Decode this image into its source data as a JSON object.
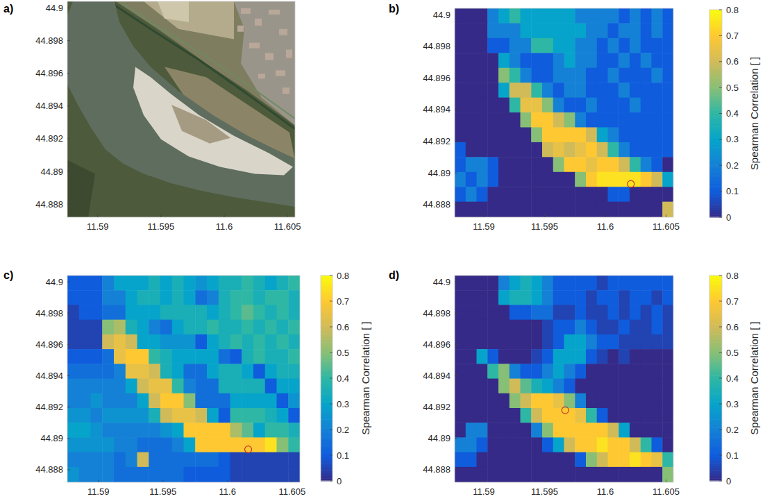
{
  "chart_data": [
    {
      "type": "image",
      "title": "a)",
      "xlim": [
        11.5876,
        11.6056
      ],
      "ylim": [
        44.8872,
        44.9004
      ],
      "xticks": [
        11.59,
        11.595,
        11.6,
        11.605
      ],
      "yticks": [
        44.888,
        44.89,
        44.892,
        44.894,
        44.896,
        44.898,
        44.9
      ]
    },
    {
      "type": "heatmap",
      "title": "b)",
      "xlim": [
        11.5876,
        11.6056
      ],
      "ylim": [
        44.8872,
        44.9004
      ],
      "xticks": [
        11.59,
        11.595,
        11.6,
        11.605
      ],
      "yticks": [
        44.888,
        44.89,
        44.892,
        44.894,
        44.896,
        44.898,
        44.9
      ],
      "x_edges": [
        11.5876,
        11.5885,
        11.5894,
        11.5903,
        11.5912,
        11.5921,
        11.593,
        11.5939,
        11.5948,
        11.5957,
        11.5966,
        11.5975,
        11.5984,
        11.5993,
        11.6002,
        11.6011,
        11.602,
        11.6029,
        11.6038,
        11.6047,
        11.6056
      ],
      "y_edges": [
        44.9004,
        44.89946,
        44.89852,
        44.89758,
        44.89664,
        44.8957,
        44.89476,
        44.89382,
        44.89288,
        44.89194,
        44.891,
        44.89006,
        44.88912,
        44.88818,
        44.8872
      ],
      "cells": [
        [
          0,
          0,
          0,
          0.2,
          0.3,
          0.4,
          0.3,
          0.3,
          0.3,
          0.3,
          0.3,
          0.2,
          0.2,
          0.2,
          0.2,
          0.1,
          0.2,
          0.1,
          0.2,
          0.1
        ],
        [
          0,
          0,
          0,
          0.2,
          0.2,
          0.2,
          0.3,
          0.3,
          0.3,
          0.3,
          0.3,
          0.3,
          0.2,
          0.2,
          0.1,
          0.2,
          0.2,
          0.1,
          0.2,
          0.1
        ],
        [
          0,
          0,
          0,
          0.1,
          0.1,
          0.2,
          0.2,
          0.4,
          0.4,
          0.3,
          0.3,
          0.2,
          0.2,
          0.1,
          0.2,
          0.1,
          0.2,
          0.1,
          0.1,
          0.1
        ],
        [
          0,
          0,
          0,
          0,
          0.3,
          0.2,
          0.1,
          0.1,
          0.1,
          0.2,
          0.3,
          0.2,
          0.2,
          0.1,
          0.1,
          0.2,
          0.1,
          0.2,
          0.1,
          0.1
        ],
        [
          0,
          0,
          0,
          0,
          0.5,
          0.4,
          0.2,
          0.1,
          0.1,
          0.2,
          0.2,
          0.2,
          0.1,
          0.1,
          0.2,
          0.1,
          0.1,
          0.1,
          0.2,
          0.1
        ],
        [
          0,
          0,
          0,
          0,
          0.3,
          0.6,
          0.6,
          0.4,
          0.2,
          0.1,
          0.2,
          0.2,
          0.1,
          0.1,
          0.1,
          0.2,
          0.1,
          0.1,
          0.1,
          0.1
        ],
        [
          0,
          0,
          0,
          0,
          0,
          0.4,
          0.65,
          0.65,
          0.5,
          0.2,
          0.1,
          0.1,
          0.2,
          0.1,
          0.1,
          0.1,
          0.2,
          0.1,
          0.1,
          0.1
        ],
        [
          0,
          0,
          0,
          0,
          0,
          0,
          0.5,
          0.7,
          0.7,
          0.6,
          0.5,
          0.2,
          0.1,
          0.1,
          0.1,
          0.1,
          0.1,
          0.1,
          0.1,
          0.1
        ],
        [
          0,
          0,
          0,
          0,
          0,
          0,
          0,
          0.5,
          0.7,
          0.7,
          0.7,
          0.7,
          0.6,
          0.3,
          0.2,
          0.1,
          0.1,
          0.1,
          0.1,
          0.1
        ],
        [
          0.1,
          0,
          0,
          0,
          0,
          0,
          0,
          0,
          0.6,
          0.65,
          0.6,
          0.65,
          0.7,
          0.6,
          0.4,
          0.2,
          0.1,
          0.1,
          0.1,
          0.1
        ],
        [
          0.1,
          0.2,
          0.2,
          0.1,
          0,
          0,
          0,
          0,
          0,
          0.5,
          0.7,
          0.7,
          0.65,
          0.7,
          0.7,
          0.6,
          0.4,
          0.2,
          0.1,
          0
        ],
        [
          0.2,
          0.1,
          0.2,
          0.1,
          0,
          0,
          0,
          0,
          0,
          0,
          0,
          0.5,
          0.7,
          0.75,
          0.75,
          0.75,
          0.75,
          0.7,
          0.6,
          0.3
        ],
        [
          0.1,
          0.2,
          0.1,
          0,
          0,
          0,
          0,
          0,
          0,
          0,
          0,
          0,
          0,
          0,
          0.1,
          0.1,
          0,
          0,
          0,
          0
        ],
        [
          0,
          0,
          0,
          0,
          0,
          0,
          0,
          0,
          0,
          0,
          0,
          0,
          0,
          0,
          0,
          0,
          0,
          0,
          0,
          0.6
        ]
      ],
      "point": {
        "x": 11.6021,
        "y": 44.8893
      },
      "colorbar": {
        "label": "Spearman Correlation [ ]",
        "range": [
          0,
          0.8
        ],
        "ticks": [
          0,
          0.1,
          0.2,
          0.3,
          0.4,
          0.5,
          0.6,
          0.7,
          0.8
        ]
      }
    },
    {
      "type": "heatmap",
      "title": "c)",
      "xlim": [
        11.5876,
        11.6056
      ],
      "ylim": [
        44.8872,
        44.9004
      ],
      "xticks": [
        11.59,
        11.595,
        11.6,
        11.605
      ],
      "yticks": [
        44.888,
        44.89,
        44.892,
        44.894,
        44.896,
        44.898,
        44.9
      ],
      "x_edges": [
        11.5876,
        11.5885,
        11.5894,
        11.5903,
        11.5912,
        11.5921,
        11.593,
        11.5939,
        11.5948,
        11.5957,
        11.5966,
        11.5975,
        11.5984,
        11.5993,
        11.6002,
        11.6011,
        11.602,
        11.6029,
        11.6038,
        11.6047,
        11.6056
      ],
      "y_edges": [
        44.9004,
        44.89946,
        44.89852,
        44.89758,
        44.89664,
        44.8957,
        44.89476,
        44.89382,
        44.89288,
        44.89194,
        44.891,
        44.89006,
        44.88912,
        44.88818,
        44.8872
      ],
      "cells": [
        [
          0.1,
          0.1,
          0.1,
          0.2,
          0.3,
          0.3,
          0.3,
          0.35,
          0.3,
          0.35,
          0.3,
          0.25,
          0.3,
          0.35,
          0.35,
          0.4,
          0.35,
          0.3,
          0.35,
          0.4
        ],
        [
          0.1,
          0.1,
          0.1,
          0.2,
          0.2,
          0.3,
          0.35,
          0.35,
          0.3,
          0.35,
          0.3,
          0.15,
          0.2,
          0.35,
          0.4,
          0.4,
          0.35,
          0.4,
          0.4,
          0.35
        ],
        [
          0.05,
          0.1,
          0.1,
          0.15,
          0.15,
          0.3,
          0.3,
          0.3,
          0.35,
          0.35,
          0.35,
          0.35,
          0.3,
          0.35,
          0.4,
          0.45,
          0.4,
          0.35,
          0.4,
          0.35
        ],
        [
          0.05,
          0.05,
          0.05,
          0.5,
          0.55,
          0.35,
          0.3,
          0.2,
          0.15,
          0.3,
          0.35,
          0.35,
          0.4,
          0.35,
          0.35,
          0.4,
          0.35,
          0.4,
          0.35,
          0.4
        ],
        [
          0.05,
          0.05,
          0.05,
          0.6,
          0.65,
          0.6,
          0.3,
          0.3,
          0.25,
          0.25,
          0.25,
          0.1,
          0.3,
          0.35,
          0.4,
          0.35,
          0.4,
          0.35,
          0.4,
          0.35
        ],
        [
          0.1,
          0.1,
          0.1,
          0.15,
          0.65,
          0.7,
          0.7,
          0.4,
          0.35,
          0.3,
          0.3,
          0.3,
          0.3,
          0.15,
          0.1,
          0.35,
          0.4,
          0.35,
          0.35,
          0.4
        ],
        [
          0.15,
          0.15,
          0.15,
          0.15,
          0.2,
          0.65,
          0.65,
          0.6,
          0.35,
          0.3,
          0.15,
          0.15,
          0.3,
          0.35,
          0.35,
          0.3,
          0.1,
          0.3,
          0.35,
          0.35
        ],
        [
          0.2,
          0.2,
          0.2,
          0.2,
          0.2,
          0.3,
          0.6,
          0.65,
          0.65,
          0.4,
          0.2,
          0.15,
          0.15,
          0.35,
          0.35,
          0.35,
          0.35,
          0.1,
          0.3,
          0.3
        ],
        [
          0.2,
          0.2,
          0.25,
          0.2,
          0.2,
          0.2,
          0.3,
          0.6,
          0.7,
          0.7,
          0.5,
          0.15,
          0.15,
          0.15,
          0.3,
          0.3,
          0.3,
          0.3,
          0.1,
          0.25
        ],
        [
          0.25,
          0.25,
          0.2,
          0.25,
          0.25,
          0.25,
          0.25,
          0.35,
          0.6,
          0.65,
          0.65,
          0.6,
          0.3,
          0.1,
          0.4,
          0.4,
          0.4,
          0.35,
          0.3,
          0.1
        ],
        [
          0.3,
          0.3,
          0.25,
          0.2,
          0.2,
          0.2,
          0.2,
          0.2,
          0.25,
          0.3,
          0.7,
          0.7,
          0.7,
          0.7,
          0.55,
          0.45,
          0.3,
          0.4,
          0.4,
          0.35
        ],
        [
          0.25,
          0.25,
          0.25,
          0.25,
          0.2,
          0.2,
          0.15,
          0.15,
          0.15,
          0.2,
          0.3,
          0.7,
          0.7,
          0.7,
          0.7,
          0.7,
          0.7,
          0.75,
          0.5,
          0.4
        ],
        [
          0.2,
          0.2,
          0.2,
          0.2,
          0.15,
          0.2,
          0.6,
          0.15,
          0.15,
          0.15,
          0.15,
          0.15,
          0.15,
          0.1,
          0.05,
          0.05,
          0.05,
          0.05,
          0.05,
          0.05
        ],
        [
          0.25,
          0.2,
          0.2,
          0.2,
          0.15,
          0.15,
          0.15,
          0.15,
          0.15,
          0.15,
          0.1,
          0.1,
          0.1,
          0.1,
          0.05,
          0.05,
          0.05,
          0.05,
          0.05,
          0.05
        ]
      ],
      "point": {
        "x": 11.6016,
        "y": 44.8893
      },
      "colorbar": {
        "label": "Spearman Correlation [ ]",
        "range": [
          0,
          0.8
        ],
        "ticks": [
          0,
          0.1,
          0.2,
          0.3,
          0.4,
          0.5,
          0.6,
          0.7,
          0.8
        ]
      }
    },
    {
      "type": "heatmap",
      "title": "d)",
      "xlim": [
        11.5876,
        11.6056
      ],
      "ylim": [
        44.8872,
        44.9004
      ],
      "xticks": [
        11.59,
        11.595,
        11.6,
        11.605
      ],
      "yticks": [
        44.888,
        44.89,
        44.892,
        44.894,
        44.896,
        44.898,
        44.9
      ],
      "x_edges": [
        11.5876,
        11.5885,
        11.5894,
        11.5903,
        11.5912,
        11.5921,
        11.593,
        11.5939,
        11.5948,
        11.5957,
        11.5966,
        11.5975,
        11.5984,
        11.5993,
        11.6002,
        11.6011,
        11.602,
        11.6029,
        11.6038,
        11.6047,
        11.6056
      ],
      "y_edges": [
        44.9004,
        44.89946,
        44.89852,
        44.89758,
        44.89664,
        44.8957,
        44.89476,
        44.89382,
        44.89288,
        44.89194,
        44.891,
        44.89006,
        44.88912,
        44.88818,
        44.8872
      ],
      "cells": [
        [
          0,
          0,
          0,
          0,
          0.2,
          0.3,
          0.35,
          0.3,
          0.2,
          0.1,
          0.1,
          0.1,
          0.1,
          0.05,
          0.1,
          0.1,
          0.1,
          0.1,
          0.1,
          0.1
        ],
        [
          0,
          0,
          0,
          0,
          0.3,
          0.35,
          0.35,
          0.3,
          0.2,
          0.1,
          0.1,
          0.1,
          0.05,
          0.1,
          0.1,
          0.05,
          0.1,
          0.1,
          0.05,
          0.1
        ],
        [
          0,
          0,
          0,
          0,
          0,
          0.1,
          0.1,
          0.15,
          0.15,
          0.05,
          0.05,
          0.1,
          0.05,
          0.05,
          0.1,
          0.05,
          0.1,
          0.05,
          0.1,
          0.05
        ],
        [
          0,
          0,
          0,
          0,
          0,
          0,
          0,
          0,
          0.05,
          0.1,
          0.1,
          0.2,
          0.1,
          0.05,
          0.05,
          0.1,
          0.05,
          0.05,
          0.1,
          0.05
        ],
        [
          0,
          0,
          0,
          0,
          0,
          0,
          0,
          0,
          0.05,
          0.1,
          0.3,
          0.3,
          0.2,
          0.1,
          0.1,
          0.05,
          0.05,
          0.05,
          0.05,
          0.05
        ],
        [
          0,
          0,
          0.3,
          0.1,
          0,
          0,
          0,
          0.05,
          0.1,
          0.3,
          0.3,
          0.3,
          0.1,
          0.05,
          0,
          0.05,
          0,
          0,
          0,
          0
        ],
        [
          0,
          0,
          0,
          0.4,
          0.5,
          0.2,
          0.1,
          0.1,
          0.2,
          0.3,
          0.2,
          0.1,
          0,
          0,
          0,
          0,
          0,
          0,
          0,
          0
        ],
        [
          0,
          0,
          0,
          0,
          0.5,
          0.6,
          0.45,
          0.35,
          0.3,
          0.2,
          0.1,
          0,
          0,
          0,
          0,
          0,
          0,
          0,
          0,
          0
        ],
        [
          0,
          0,
          0,
          0,
          0,
          0.5,
          0.6,
          0.7,
          0.7,
          0.65,
          0.5,
          0.2,
          0,
          0,
          0,
          0,
          0,
          0,
          0,
          0
        ],
        [
          0,
          0,
          0,
          0,
          0,
          0,
          0.4,
          0.6,
          0.7,
          0.7,
          0.7,
          0.65,
          0.4,
          0.1,
          0,
          0,
          0,
          0,
          0,
          0
        ],
        [
          0,
          0.2,
          0.2,
          0,
          0,
          0,
          0,
          0.2,
          0.5,
          0.7,
          0.7,
          0.7,
          0.7,
          0.7,
          0.6,
          0.3,
          0,
          0,
          0,
          0
        ],
        [
          0.2,
          0.2,
          0.1,
          0,
          0,
          0,
          0,
          0,
          0.1,
          0.3,
          0.6,
          0.7,
          0.7,
          0.75,
          0.7,
          0.7,
          0.6,
          0.4,
          0.1,
          0
        ],
        [
          0.1,
          0.1,
          0,
          0,
          0,
          0,
          0,
          0,
          0,
          0,
          0,
          0.1,
          0.5,
          0.6,
          0.7,
          0.7,
          0.75,
          0.7,
          0.65,
          0.4
        ],
        [
          0,
          0,
          0,
          0,
          0,
          0,
          0,
          0,
          0,
          0,
          0,
          0,
          0,
          0,
          0,
          0,
          0,
          0,
          0,
          0.5
        ]
      ],
      "point": {
        "x": 11.5967,
        "y": 44.8918
      },
      "colorbar": {
        "label": "Spearman Correlation [ ]",
        "range": [
          0,
          0.8
        ],
        "ticks": [
          0,
          0.1,
          0.2,
          0.3,
          0.4,
          0.5,
          0.6,
          0.7,
          0.8
        ]
      }
    }
  ]
}
